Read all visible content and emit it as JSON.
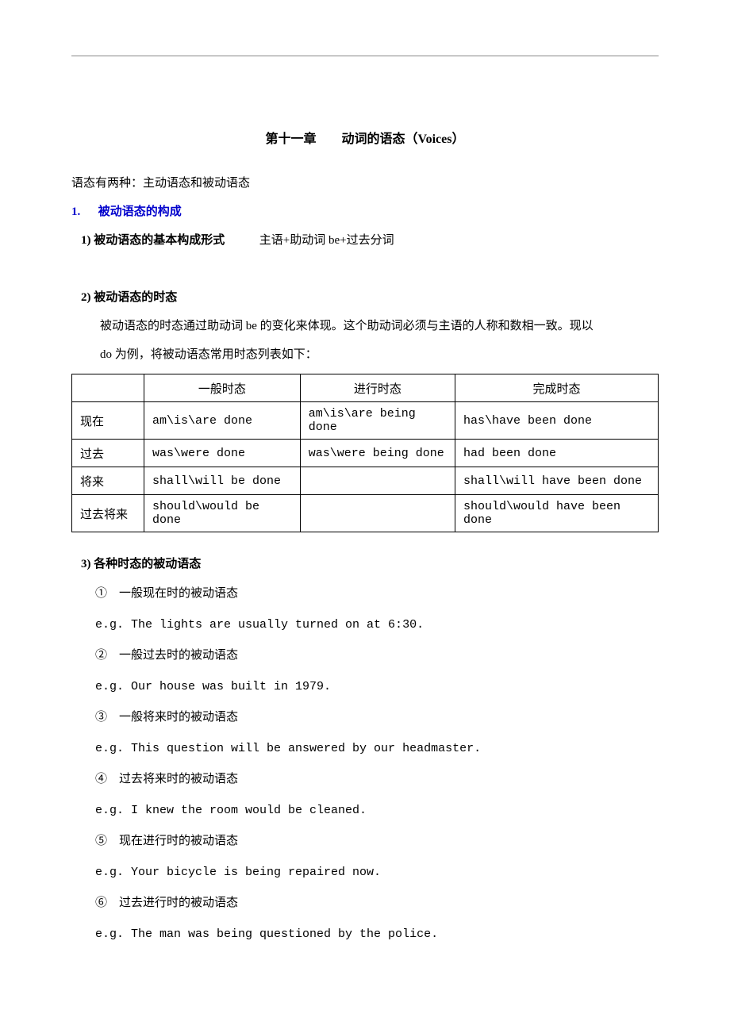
{
  "chapter_title": "第十一章　　动词的语态（Voices）",
  "intro": "语态有两种：主动语态和被动语态",
  "section1": {
    "num": "1.",
    "title": "被动语态的构成",
    "sub1": {
      "label": "1) 被动语态的基本构成形式",
      "desc": "主语+助动词 be+过去分词"
    },
    "sub2": {
      "label": "2) 被动语态的时态",
      "desc_line1": "被动语态的时态通过助动词 be 的变化来体现。这个助动词必须与主语的人称和数相一致。现以",
      "desc_line2": "do 为例，将被动语态常用时态列表如下："
    },
    "sub3": {
      "label": "3) 各种时态的被动语态"
    }
  },
  "table": {
    "headers": [
      "",
      "一般时态",
      "进行时态",
      "完成时态"
    ],
    "rows": [
      {
        "label": "现在",
        "c1": "am\\is\\are done",
        "c2": "am\\is\\are being done",
        "c3": "has\\have been done"
      },
      {
        "label": "过去",
        "c1": "was\\were done",
        "c2": "was\\were being done",
        "c3": "had been done"
      },
      {
        "label": "将来",
        "c1": "shall\\will be done",
        "c2": "",
        "c3": "shall\\will have been done"
      },
      {
        "label": "过去将来",
        "c1": "should\\would be done",
        "c2": "",
        "c3": "should\\would have been done"
      }
    ],
    "col_widths": [
      "80px",
      "190px",
      "190px",
      "auto"
    ],
    "border_color": "#000000",
    "font_size": 15
  },
  "examples": [
    {
      "num": "①",
      "title": "一般现在时的被动语态",
      "eg": "e.g. The lights are usually turned on at 6:30."
    },
    {
      "num": "②",
      "title": "一般过去时的被动语态",
      "eg": "e.g. Our house was built in 1979."
    },
    {
      "num": "③",
      "title": "一般将来时的被动语态",
      "eg": "e.g. This question will be answered by our headmaster."
    },
    {
      "num": "④",
      "title": "过去将来时的被动语态",
      "eg": "e.g. I knew the room would be cleaned."
    },
    {
      "num": "⑤",
      "title": "现在进行时的被动语态",
      "eg": "e.g. Your bicycle is being repaired now."
    },
    {
      "num": "⑥",
      "title": "过去进行时的被动语态",
      "eg": "e.g. The man was being questioned by the police."
    }
  ],
  "colors": {
    "blue": "#0000cc",
    "text": "#000000",
    "rule": "#888888",
    "bg": "#ffffff"
  },
  "typography": {
    "title_fontsize": 16,
    "body_fontsize": 15,
    "line_height": 2.4,
    "font_family": "SimSun"
  }
}
